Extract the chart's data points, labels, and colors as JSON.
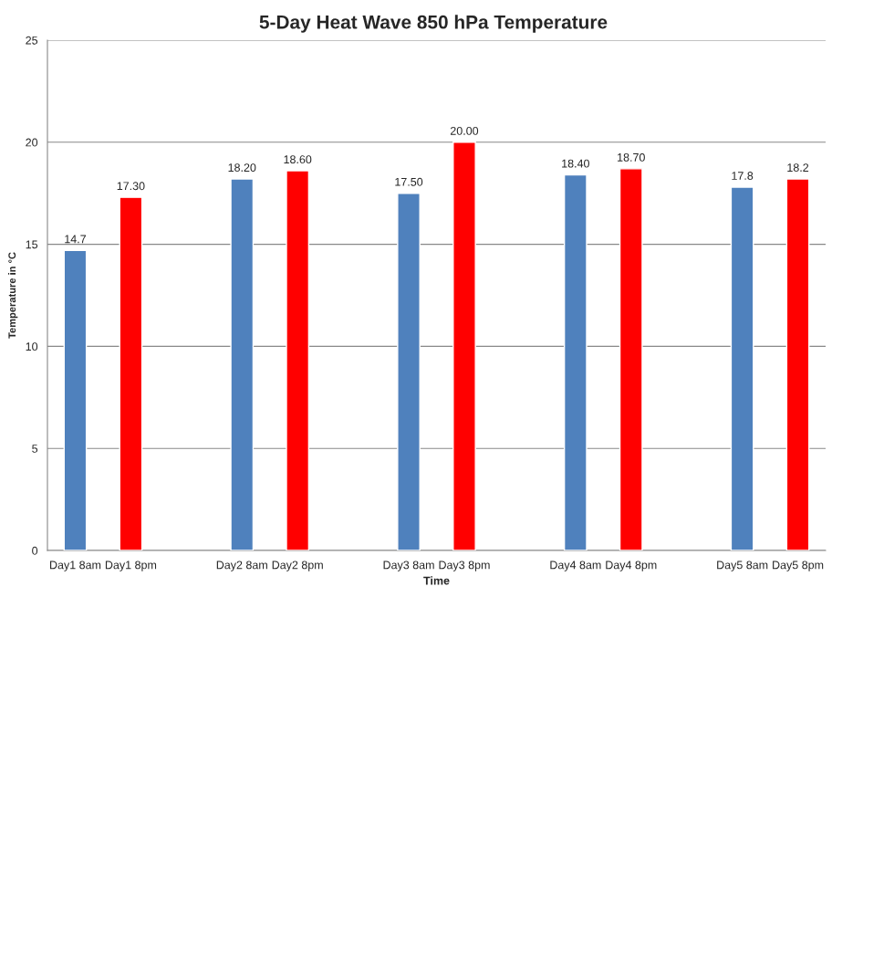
{
  "chart_data": {
    "type": "bar",
    "title": "5-Day Heat Wave 850 hPa Temperature",
    "xlabel": "Time",
    "ylabel": "Temperature in °C",
    "categories": [
      "Day1 8am",
      "Day1 8pm",
      null,
      "Day2 8am",
      "Day2 8pm",
      null,
      "Day3 8am",
      "Day3 8pm",
      null,
      "Day4 8am",
      "Day4 8pm",
      null,
      "Day5 8am",
      "Day5 8pm"
    ],
    "values": [
      14.7,
      17.3,
      null,
      18.2,
      18.6,
      null,
      17.5,
      20.0,
      null,
      18.4,
      18.7,
      null,
      17.8,
      18.2
    ],
    "colors": [
      "#4f81bd",
      "#ff0000",
      null,
      "#4f81bd",
      "#ff0000",
      null,
      "#4f81bd",
      "#ff0000",
      null,
      "#4f81bd",
      "#ff0000",
      null,
      "#4f81bd",
      "#ff0000"
    ],
    "value_labels": [
      "14.7",
      "17.30",
      null,
      "18.20",
      "18.60",
      null,
      "17.50",
      "20.00",
      null,
      "18.40",
      "18.70",
      null,
      "17.8",
      "18.2"
    ],
    "ylim": [
      0,
      25
    ],
    "yticks": [
      0,
      5,
      10,
      15,
      20,
      25
    ],
    "grid": "y",
    "legend": false
  }
}
